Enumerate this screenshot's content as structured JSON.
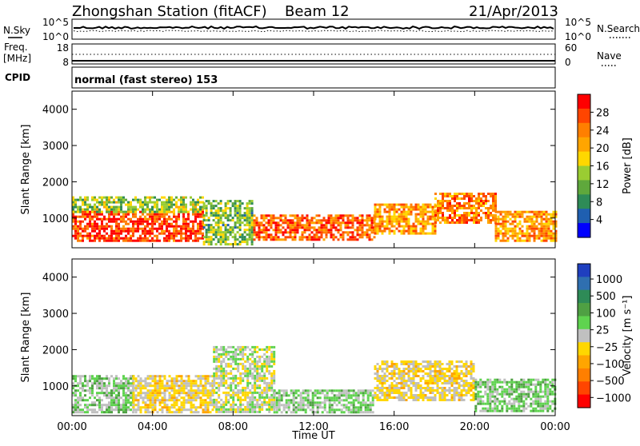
{
  "header": {
    "station": "Zhongshan Station (fitACF)",
    "beam": "Beam 12",
    "date": "21/Apr/2013",
    "cpid_text": "normal (fast stereo) 153"
  },
  "left_labels": {
    "nsky": "N.Sky",
    "freq_line1": "Freq.",
    "freq_line2": "[MHz]",
    "cpid": "CPID"
  },
  "right_labels": {
    "nsearch": "N.Search",
    "nave": "Nave"
  },
  "strip_ticks": {
    "nsky_top": "10^5",
    "nsky_bottom": "10^0",
    "nsearch_top": "10^5",
    "nsearch_bottom": "10^0",
    "freq_top": "18",
    "freq_bottom": "8",
    "nave_top": "60",
    "nave_bottom": "0"
  },
  "colors": {
    "power": [
      "#0000ff",
      "#1f5fb0",
      "#2e8b57",
      "#5fa83c",
      "#9acd32",
      "#ffd700",
      "#ffa500",
      "#ff7f00",
      "#ff4500",
      "#ff0000"
    ],
    "velocity": [
      "#1f3fbf",
      "#2f6fb0",
      "#2e8b57",
      "#4fa043",
      "#5fd34f",
      "#c0c0c0",
      "#ffd700",
      "#ffa500",
      "#ff7f00",
      "#ff4500",
      "#ff0000"
    ]
  },
  "chart_data": [
    {
      "type": "heatmap",
      "title": "",
      "ylabel": "Slant Range [km]",
      "xlabel": "",
      "x_ticks": [
        "00:00",
        "04:00",
        "08:00",
        "12:00",
        "16:00",
        "20:00",
        "00:00"
      ],
      "y_ticks": [
        "1000",
        "2000",
        "3000",
        "4000"
      ],
      "ylim": [
        180,
        4500
      ],
      "xlim_hours": [
        0,
        24
      ],
      "colorbar_label": "Power [dB]",
      "colorbar_ticks": [
        "4",
        "8",
        "12",
        "16",
        "20",
        "24",
        "28"
      ],
      "clim": [
        0,
        32
      ],
      "regions": [
        {
          "t0": 0,
          "t1": 6.5,
          "r0": 400,
          "r1": 1200,
          "level": 28
        },
        {
          "t0": 0,
          "t1": 6.5,
          "r0": 1200,
          "r1": 1600,
          "level": 14
        },
        {
          "t0": 6.5,
          "t1": 9,
          "r0": 300,
          "r1": 1500,
          "level": 12
        },
        {
          "t0": 9,
          "t1": 15,
          "r0": 400,
          "r1": 1100,
          "level": 26
        },
        {
          "t0": 15,
          "t1": 18,
          "r0": 600,
          "r1": 1400,
          "level": 22
        },
        {
          "t0": 18,
          "t1": 21,
          "r0": 900,
          "r1": 1700,
          "level": 24
        },
        {
          "t0": 21,
          "t1": 24,
          "r0": 400,
          "r1": 1200,
          "level": 22
        }
      ]
    },
    {
      "type": "heatmap",
      "title": "",
      "ylabel": "Slant Range [km]",
      "xlabel": "Time UT",
      "x_ticks": [
        "00:00",
        "04:00",
        "08:00",
        "12:00",
        "16:00",
        "20:00",
        "00:00"
      ],
      "y_ticks": [
        "1000",
        "2000",
        "3000",
        "4000"
      ],
      "ylim": [
        180,
        4500
      ],
      "xlim_hours": [
        0,
        24
      ],
      "colorbar_label": "Velocity [m s⁻¹]",
      "colorbar_ticks": [
        "1000",
        "500",
        "100",
        "25",
        "−25",
        "−100",
        "−500",
        "−1000"
      ],
      "clim": [
        -1200,
        1200
      ],
      "regions": [
        {
          "t0": 0,
          "t1": 3,
          "r0": 300,
          "r1": 1300,
          "level": 150
        },
        {
          "t0": 3,
          "t1": 7,
          "r0": 300,
          "r1": 1300,
          "level": -150
        },
        {
          "t0": 7,
          "t1": 10,
          "r0": 300,
          "r1": 2100,
          "level": 0
        },
        {
          "t0": 10,
          "t1": 15,
          "r0": 300,
          "r1": 900,
          "level": 150
        },
        {
          "t0": 15,
          "t1": 20,
          "r0": 600,
          "r1": 1700,
          "level": -150
        },
        {
          "t0": 20,
          "t1": 24,
          "r0": 300,
          "r1": 1200,
          "level": 200
        }
      ]
    }
  ]
}
